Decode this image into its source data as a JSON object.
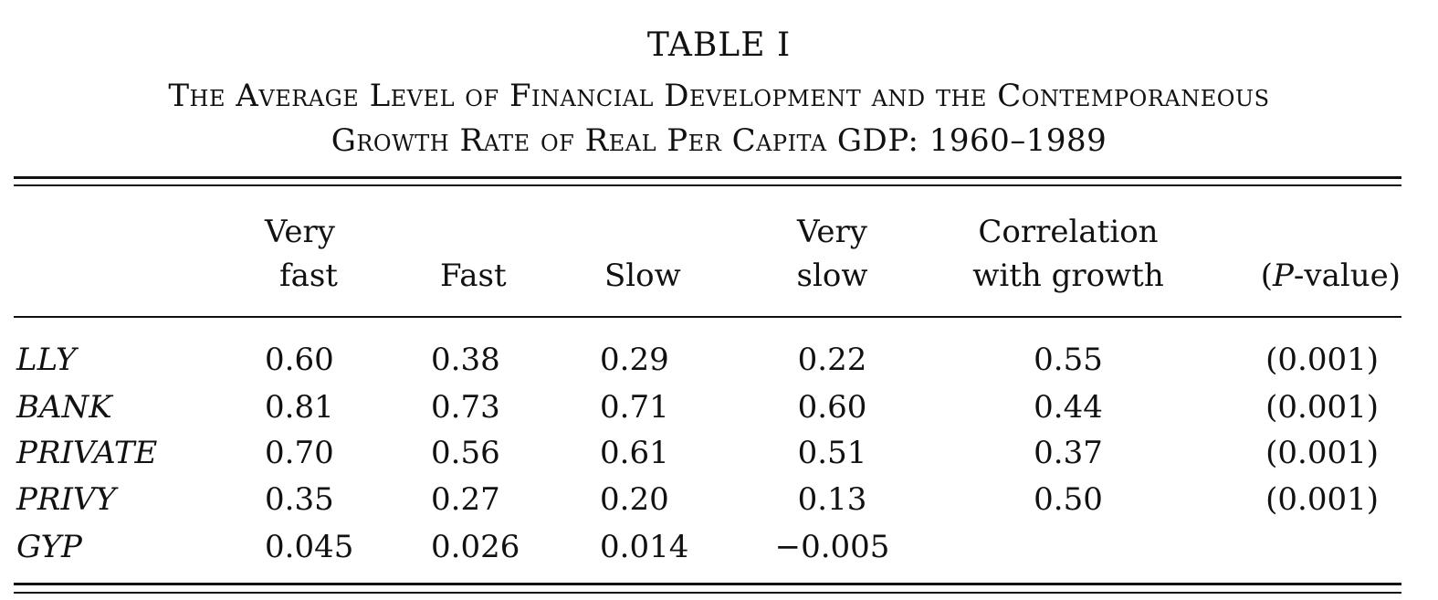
{
  "table": {
    "label": "TABLE I",
    "caption_line1": "The Average Level of Financial Development and the Contemporaneous",
    "caption_line2": "Growth Rate of Real Per Capita GDP: 1960–1989",
    "headers": {
      "very_fast": [
        "Very",
        "fast"
      ],
      "fast": "Fast",
      "slow": "Slow",
      "very_slow": [
        "Very",
        "slow"
      ],
      "correlation": [
        "Correlation",
        "with growth"
      ],
      "pvalue_open": "(",
      "pvalue_p": "P",
      "pvalue_rest": "-value)"
    },
    "rows": [
      {
        "label": "LLY",
        "very_fast": "0.60",
        "fast": "0.38",
        "slow": "0.29",
        "very_slow": "0.22",
        "correlation": "0.55",
        "pvalue": "(0.001)"
      },
      {
        "label": "BANK",
        "very_fast": "0.81",
        "fast": "0.73",
        "slow": "0.71",
        "very_slow": "0.60",
        "correlation": "0.44",
        "pvalue": "(0.001)"
      },
      {
        "label": "PRIVATE",
        "very_fast": "0.70",
        "fast": "0.56",
        "slow": "0.61",
        "very_slow": "0.51",
        "correlation": "0.37",
        "pvalue": "(0.001)"
      },
      {
        "label": "PRIVY",
        "very_fast": "0.35",
        "fast": "0.27",
        "slow": "0.20",
        "very_slow": "0.13",
        "correlation": "0.50",
        "pvalue": "(0.001)"
      },
      {
        "label": "GYP",
        "very_fast": "0.045",
        "fast": "0.026",
        "slow": "0.014",
        "very_slow": "−0.005",
        "correlation": "",
        "pvalue": ""
      }
    ]
  }
}
